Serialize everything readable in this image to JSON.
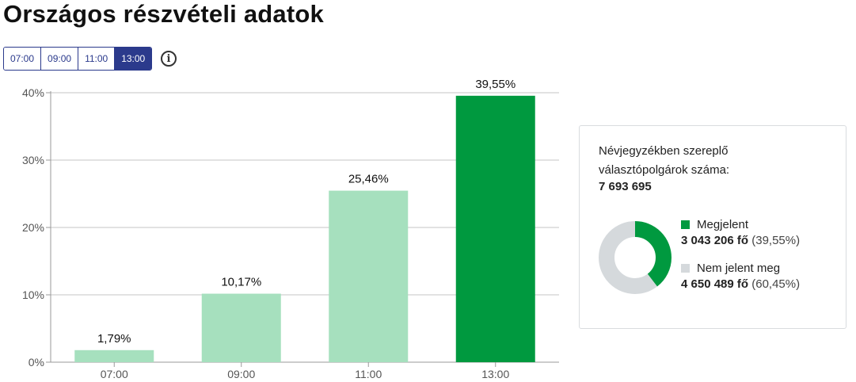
{
  "page": {
    "title": "Országos részvételi adatok"
  },
  "time_selector": {
    "buttons": [
      {
        "label": "07:00",
        "active": false
      },
      {
        "label": "09:00",
        "active": false
      },
      {
        "label": "11:00",
        "active": false
      },
      {
        "label": "13:00",
        "active": true
      }
    ],
    "info_icon": "info-icon"
  },
  "chart_data": {
    "type": "bar",
    "categories": [
      "07:00",
      "09:00",
      "11:00",
      "13:00"
    ],
    "values": [
      1.79,
      10.17,
      25.46,
      39.55
    ],
    "value_labels": [
      "1,79%",
      "10,17%",
      "25,46%",
      "39,55%"
    ],
    "ylim": [
      0,
      40
    ],
    "yticks": [
      0,
      10,
      20,
      30,
      40
    ],
    "ytick_labels": [
      "0%",
      "10%",
      "20%",
      "30%",
      "40%"
    ],
    "grid": true,
    "highlight_index": 3,
    "colors": {
      "bar": "#a6e0be",
      "highlight": "#00993f",
      "grid": "#d9d9d9",
      "axis": "#9a9a9a"
    }
  },
  "summary": {
    "title": "Névjegyzékben szereplő választópolgárok száma:",
    "total": "7 693 695",
    "donut": {
      "type": "pie",
      "values": [
        39.55,
        60.45
      ],
      "colors": [
        "#00993f",
        "#d5d9dc"
      ]
    },
    "legend": [
      {
        "label": "Megjelent",
        "value": "3 043 206 fő",
        "pct": "(39,55%)",
        "color": "#00993f"
      },
      {
        "label": "Nem jelent meg",
        "value": "4 650 489 fő",
        "pct": "(60,45%)",
        "color": "#d5d9dc"
      }
    ]
  }
}
